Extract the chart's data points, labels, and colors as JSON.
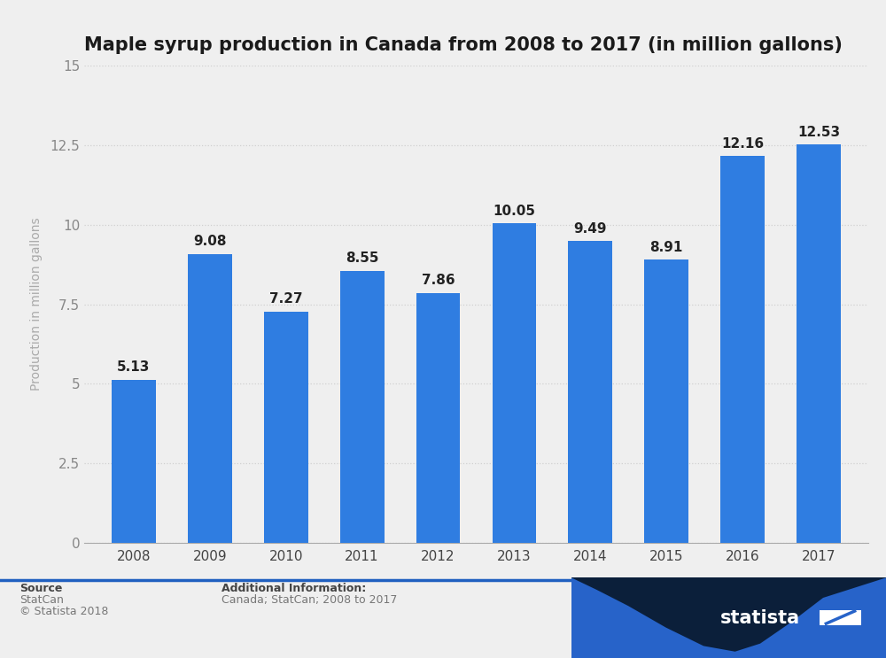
{
  "title": "Maple syrup production in Canada from 2008 to 2017 (in million gallons)",
  "years": [
    "2008",
    "2009",
    "2010",
    "2011",
    "2012",
    "2013",
    "2014",
    "2015",
    "2016",
    "2017"
  ],
  "values": [
    5.13,
    9.08,
    7.27,
    8.55,
    7.86,
    10.05,
    9.49,
    8.91,
    12.16,
    12.53
  ],
  "bar_color": "#2f7de1",
  "ylabel": "Production in million gallons",
  "ylim": [
    0,
    15
  ],
  "yticks": [
    0,
    2.5,
    5,
    7.5,
    10,
    12.5,
    15
  ],
  "ytick_labels": [
    "0",
    "2.5",
    "5",
    "7.5",
    "10",
    "12.5",
    "15"
  ],
  "bg_color": "#efefef",
  "plot_bg_color": "#efefef",
  "title_fontsize": 15,
  "label_fontsize": 10,
  "tick_fontsize": 11,
  "value_fontsize": 11,
  "grid_color": "#d0d0d0",
  "footer_bg": "#efefef",
  "dark_navy": "#0b1f3a",
  "wave_blue": "#2763c9"
}
